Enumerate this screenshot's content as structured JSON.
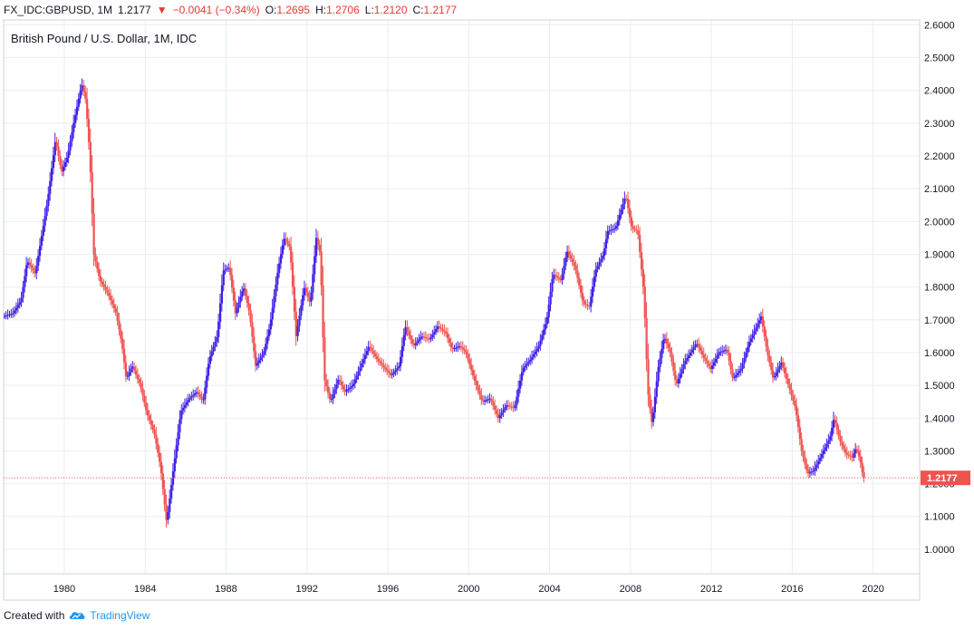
{
  "header": {
    "symbol": "FX_IDC:GBPUSD, 1M",
    "last": "1.2177",
    "down_arrow": "▼",
    "change": "−0.0041 (−0.34%)",
    "o_label": "O:",
    "o_value": "1.2695",
    "h_label": "H:",
    "h_value": "1.2706",
    "l_label": "L:",
    "l_value": "1.2120",
    "c_label": "C:",
    "c_value": "1.2177"
  },
  "footer": {
    "created_with": "Created with",
    "brand": "TradingView",
    "logo_icon": "tradingview-cloud-icon"
  },
  "colors": {
    "up": "#3f1fe6",
    "down": "#ef5350",
    "grid": "#e9eef3",
    "last_line": "#ef5350",
    "axis_text": "#131722"
  },
  "chart_data": {
    "type": "candlestick",
    "title": "British Pound / U.S. Dollar, 1M, IDC",
    "interval": "1M",
    "x_range": [
      1977.0,
      2022.3
    ],
    "ylim": [
      0.925,
      2.615
    ],
    "x_ticks": [
      "1980",
      "1984",
      "1988",
      "1992",
      "1996",
      "2000",
      "2004",
      "2008",
      "2012",
      "2016",
      "2020"
    ],
    "y_ticks": [
      "1.0000",
      "1.1000",
      "1.2000",
      "1.3000",
      "1.4000",
      "1.5000",
      "1.6000",
      "1.7000",
      "1.8000",
      "1.9000",
      "2.0000",
      "2.1000",
      "2.2000",
      "2.3000",
      "2.4000",
      "2.5000",
      "2.6000"
    ],
    "last_value": 1.2177,
    "last_label": "1.2177",
    "path": [
      [
        1977.0,
        1.71
      ],
      [
        1977.5,
        1.72
      ],
      [
        1977.9,
        1.76
      ],
      [
        1978.2,
        1.88
      ],
      [
        1978.6,
        1.84
      ],
      [
        1978.9,
        1.95
      ],
      [
        1979.2,
        2.06
      ],
      [
        1979.6,
        2.25
      ],
      [
        1979.9,
        2.15
      ],
      [
        1980.2,
        2.2
      ],
      [
        1980.5,
        2.3
      ],
      [
        1980.9,
        2.42
      ],
      [
        1981.1,
        2.37
      ],
      [
        1981.3,
        2.2
      ],
      [
        1981.5,
        1.9
      ],
      [
        1981.8,
        1.82
      ],
      [
        1982.2,
        1.78
      ],
      [
        1982.6,
        1.72
      ],
      [
        1982.9,
        1.62
      ],
      [
        1983.1,
        1.52
      ],
      [
        1983.4,
        1.56
      ],
      [
        1983.8,
        1.5
      ],
      [
        1984.1,
        1.42
      ],
      [
        1984.5,
        1.35
      ],
      [
        1984.8,
        1.25
      ],
      [
        1985.1,
        1.08
      ],
      [
        1985.4,
        1.23
      ],
      [
        1985.8,
        1.42
      ],
      [
        1986.2,
        1.46
      ],
      [
        1986.6,
        1.48
      ],
      [
        1986.9,
        1.45
      ],
      [
        1987.2,
        1.58
      ],
      [
        1987.6,
        1.65
      ],
      [
        1987.9,
        1.85
      ],
      [
        1988.2,
        1.86
      ],
      [
        1988.5,
        1.72
      ],
      [
        1988.9,
        1.8
      ],
      [
        1989.2,
        1.72
      ],
      [
        1989.5,
        1.56
      ],
      [
        1989.9,
        1.6
      ],
      [
        1990.2,
        1.68
      ],
      [
        1990.6,
        1.85
      ],
      [
        1990.9,
        1.95
      ],
      [
        1991.2,
        1.92
      ],
      [
        1991.5,
        1.65
      ],
      [
        1991.9,
        1.8
      ],
      [
        1992.2,
        1.75
      ],
      [
        1992.5,
        1.95
      ],
      [
        1992.7,
        1.9
      ],
      [
        1992.9,
        1.52
      ],
      [
        1993.2,
        1.45
      ],
      [
        1993.6,
        1.52
      ],
      [
        1993.9,
        1.48
      ],
      [
        1994.3,
        1.5
      ],
      [
        1994.7,
        1.56
      ],
      [
        1995.1,
        1.62
      ],
      [
        1995.5,
        1.58
      ],
      [
        1995.9,
        1.55
      ],
      [
        1996.2,
        1.53
      ],
      [
        1996.6,
        1.56
      ],
      [
        1996.9,
        1.68
      ],
      [
        1997.3,
        1.62
      ],
      [
        1997.7,
        1.65
      ],
      [
        1998.1,
        1.64
      ],
      [
        1998.5,
        1.68
      ],
      [
        1998.9,
        1.66
      ],
      [
        1999.2,
        1.61
      ],
      [
        1999.6,
        1.62
      ],
      [
        1999.9,
        1.6
      ],
      [
        2000.3,
        1.52
      ],
      [
        2000.7,
        1.45
      ],
      [
        2001.1,
        1.46
      ],
      [
        2001.5,
        1.4
      ],
      [
        2001.9,
        1.44
      ],
      [
        2002.3,
        1.43
      ],
      [
        2002.7,
        1.55
      ],
      [
        2003.1,
        1.58
      ],
      [
        2003.5,
        1.62
      ],
      [
        2003.9,
        1.7
      ],
      [
        2004.2,
        1.84
      ],
      [
        2004.6,
        1.82
      ],
      [
        2004.9,
        1.91
      ],
      [
        2005.3,
        1.86
      ],
      [
        2005.7,
        1.75
      ],
      [
        2006.0,
        1.74
      ],
      [
        2006.3,
        1.85
      ],
      [
        2006.7,
        1.9
      ],
      [
        2006.9,
        1.97
      ],
      [
        2007.3,
        1.98
      ],
      [
        2007.6,
        2.04
      ],
      [
        2007.8,
        2.08
      ],
      [
        2008.1,
        1.98
      ],
      [
        2008.4,
        1.97
      ],
      [
        2008.7,
        1.78
      ],
      [
        2008.9,
        1.48
      ],
      [
        2009.1,
        1.38
      ],
      [
        2009.4,
        1.55
      ],
      [
        2009.7,
        1.65
      ],
      [
        2010.0,
        1.6
      ],
      [
        2010.3,
        1.5
      ],
      [
        2010.7,
        1.57
      ],
      [
        2011.0,
        1.6
      ],
      [
        2011.3,
        1.63
      ],
      [
        2011.7,
        1.58
      ],
      [
        2012.0,
        1.55
      ],
      [
        2012.4,
        1.6
      ],
      [
        2012.8,
        1.61
      ],
      [
        2013.1,
        1.52
      ],
      [
        2013.5,
        1.55
      ],
      [
        2013.9,
        1.63
      ],
      [
        2014.2,
        1.67
      ],
      [
        2014.5,
        1.71
      ],
      [
        2014.8,
        1.6
      ],
      [
        2015.1,
        1.52
      ],
      [
        2015.5,
        1.57
      ],
      [
        2015.9,
        1.49
      ],
      [
        2016.2,
        1.43
      ],
      [
        2016.5,
        1.3
      ],
      [
        2016.8,
        1.23
      ],
      [
        2017.1,
        1.24
      ],
      [
        2017.5,
        1.29
      ],
      [
        2017.9,
        1.34
      ],
      [
        2018.1,
        1.4
      ],
      [
        2018.4,
        1.33
      ],
      [
        2018.7,
        1.29
      ],
      [
        2019.0,
        1.28
      ],
      [
        2019.2,
        1.31
      ],
      [
        2019.4,
        1.27
      ],
      [
        2019.55,
        1.2177
      ]
    ]
  }
}
